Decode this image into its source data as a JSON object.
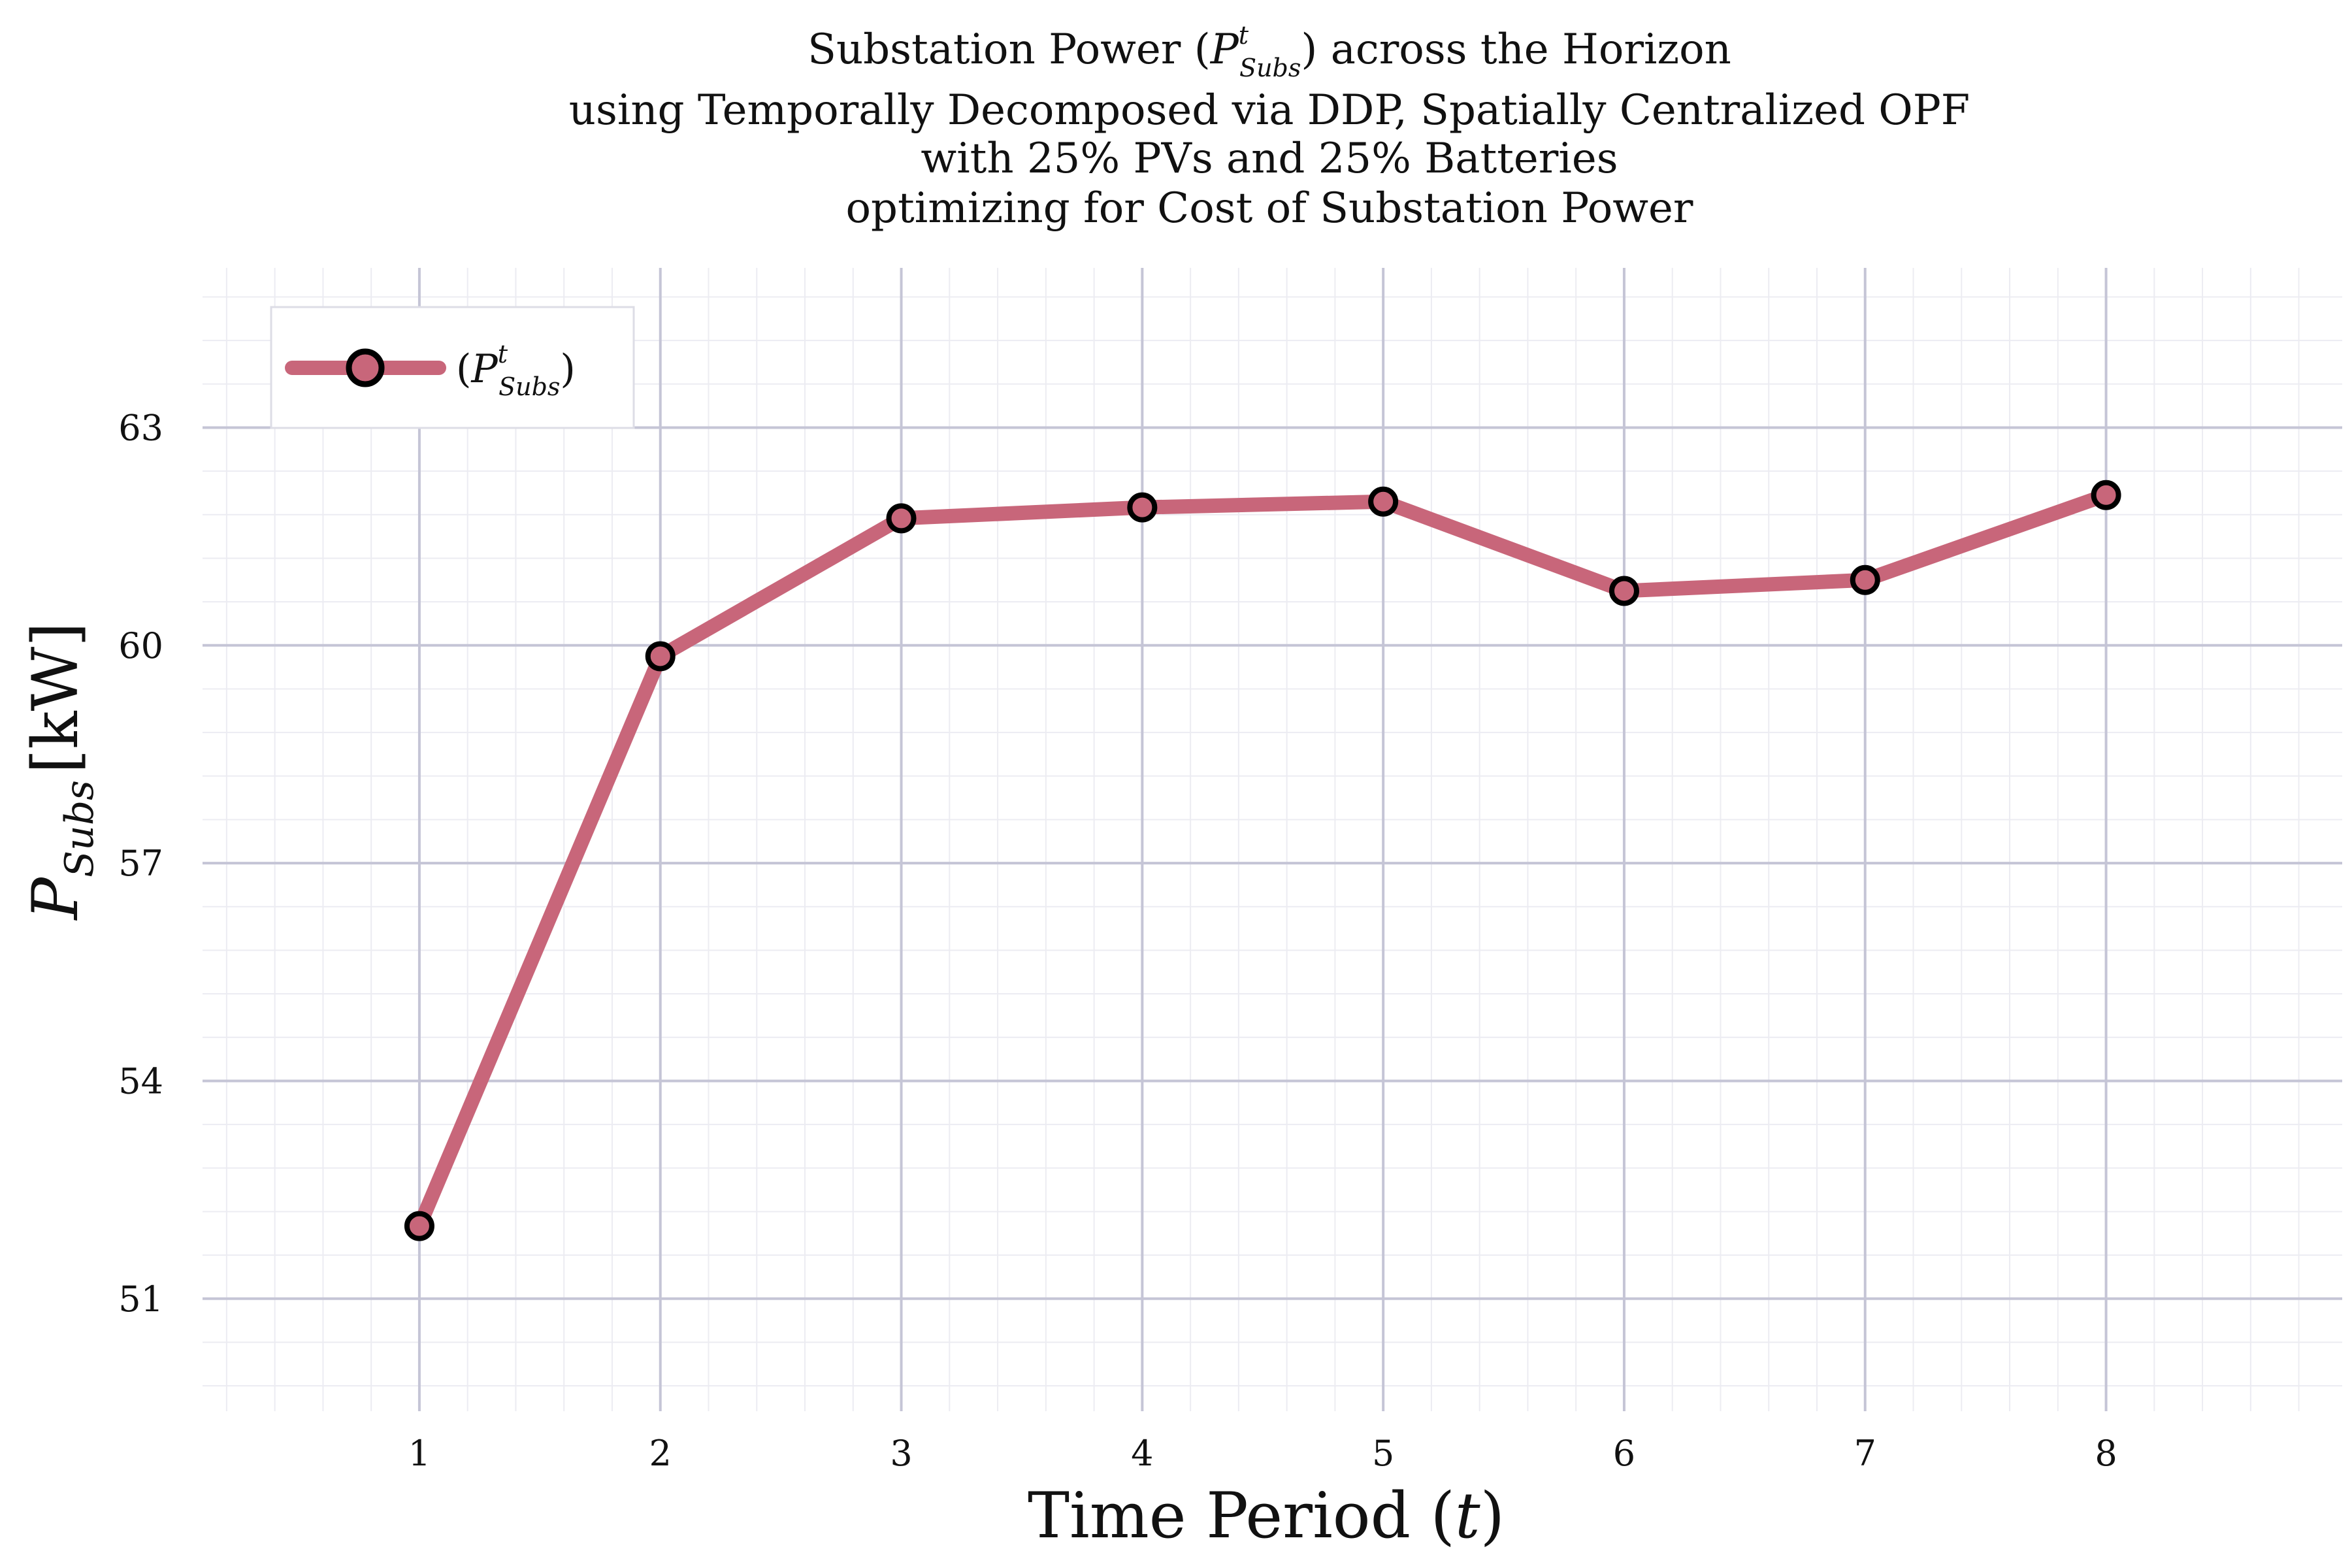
{
  "colors": {
    "series": "#c8667a",
    "marker_edge": "#000000",
    "major_grid": "#c5c5d6",
    "minor_grid": "#ececf2",
    "background": "#ffffff"
  },
  "chart_data": {
    "type": "line",
    "title_lines": [
      "Substation Power (PᵗSubs) across the Horizon",
      "using Temporally Decomposed via DDP, Spatially Centralized OPF",
      "with 25% PVs and 25% Batteries",
      "optimizing for Cost of Substation Power"
    ],
    "title_line1": {
      "before": "Substation Power (",
      "symbol": "P",
      "superscript": "t",
      "subscript": "Subs",
      "after": ") across the Horizon"
    },
    "xlabel": "Time Period (t)",
    "ylabel": "P_Subs [kW]",
    "ylabel_parts": {
      "symbol": "P",
      "subscript": "Subs",
      "unit": "[kW]"
    },
    "x": [
      1,
      2,
      3,
      4,
      5,
      6,
      7,
      8
    ],
    "xticks": [
      "1",
      "2",
      "3",
      "4",
      "5",
      "6",
      "7",
      "8"
    ],
    "yticks": [
      "51",
      "54",
      "57",
      "60",
      "63"
    ],
    "xlim": [
      0.1,
      8.98
    ],
    "ylim": [
      49.45,
      65.2
    ],
    "grid": true,
    "legend_position": "top-left",
    "series": [
      {
        "name": "(PᵗSubs)",
        "values": [
          52.0,
          59.85,
          61.75,
          61.9,
          61.98,
          60.75,
          60.9,
          62.07
        ]
      }
    ],
    "legend_label": {
      "before": "(",
      "symbol": "P",
      "superscript": "t",
      "subscript": "Subs",
      "after": ")"
    }
  }
}
